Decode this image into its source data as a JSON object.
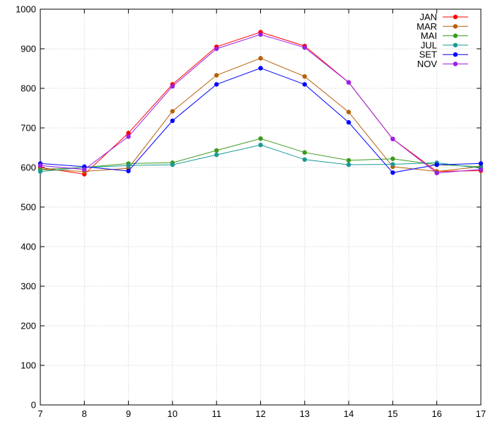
{
  "chart_data": {
    "type": "line",
    "title": "",
    "xlabel": "",
    "ylabel": "",
    "xlim": [
      7,
      17
    ],
    "ylim": [
      0,
      1000
    ],
    "x": [
      7,
      8,
      9,
      10,
      11,
      12,
      13,
      14,
      15,
      16,
      17
    ],
    "xticks": [
      "7",
      "8",
      "9",
      "10",
      "11",
      "12",
      "13",
      "14",
      "15",
      "16",
      "17"
    ],
    "yticks": [
      "0",
      "100",
      "200",
      "300",
      "400",
      "500",
      "600",
      "700",
      "800",
      "900",
      "1000"
    ],
    "grid": true,
    "legend_position": "top-right",
    "series": [
      {
        "name": "JAN",
        "color": "#ff0000",
        "values": [
          600,
          583,
          687,
          810,
          905,
          942,
          907,
          815,
          672,
          590,
          592
        ]
      },
      {
        "name": "MAR",
        "color": "#b8600a",
        "values": [
          595,
          590,
          598,
          742,
          833,
          876,
          830,
          740,
          602,
          590,
          602
        ]
      },
      {
        "name": "MAI",
        "color": "#3c9a1c",
        "values": [
          595,
          600,
          610,
          612,
          643,
          673,
          638,
          618,
          622,
          607,
          602
        ]
      },
      {
        "name": "JUL",
        "color": "#1a9a96",
        "values": [
          590,
          600,
          605,
          607,
          632,
          657,
          620,
          607,
          608,
          612,
          598
        ]
      },
      {
        "name": "SET",
        "color": "#0000ff",
        "values": [
          610,
          602,
          591,
          718,
          810,
          851,
          810,
          714,
          587,
          607,
          610
        ]
      },
      {
        "name": "NOV",
        "color": "#9b1ee6",
        "values": [
          605,
          595,
          678,
          805,
          900,
          936,
          903,
          815,
          672,
          586,
          595
        ]
      }
    ]
  }
}
